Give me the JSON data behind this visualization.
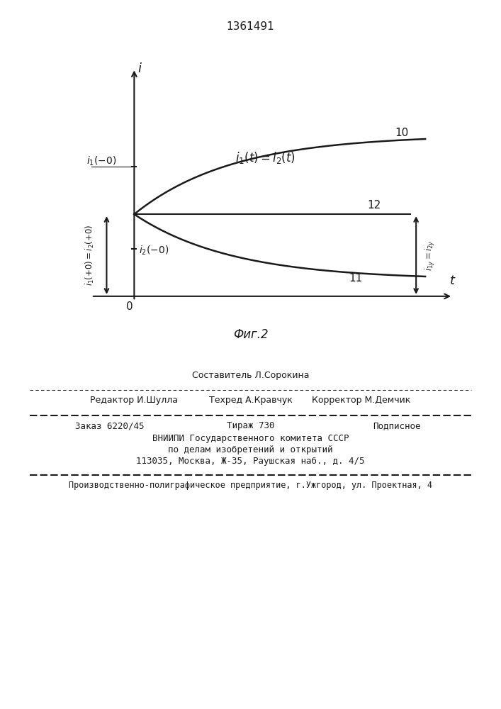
{
  "title": "1361491",
  "fig_label": "Фиг.2",
  "background_color": "#ffffff",
  "line_color": "#1a1a1a",
  "curve10_label": "10",
  "curve11_label": "11",
  "curve12_label": "12",
  "label_t": "t",
  "label_i": "i",
  "label_0": "0",
  "footer_sestavitel": "Составитель Л.Сорокина",
  "footer_editor": "Редактор И.Шулла",
  "footer_tehred": "Техред А.Кравчук",
  "footer_korrektor": "Корректор М.Демчик",
  "footer_zakaz": "Заказ 6220/45",
  "footer_tirazh": "Тираж 730",
  "footer_podpisnoe": "Подписное",
  "footer_vniip1": "ВНИИПИ Государственного комитета СССР",
  "footer_vniip2": "по делам изобретений и открытий",
  "footer_vniip3": "113035, Москва, Ж-35, Раушская наб., д. 4/5",
  "footer_prod": "Производственно-полиграфическое предприятие, г.Ужгород, ул. Проектная, 4"
}
